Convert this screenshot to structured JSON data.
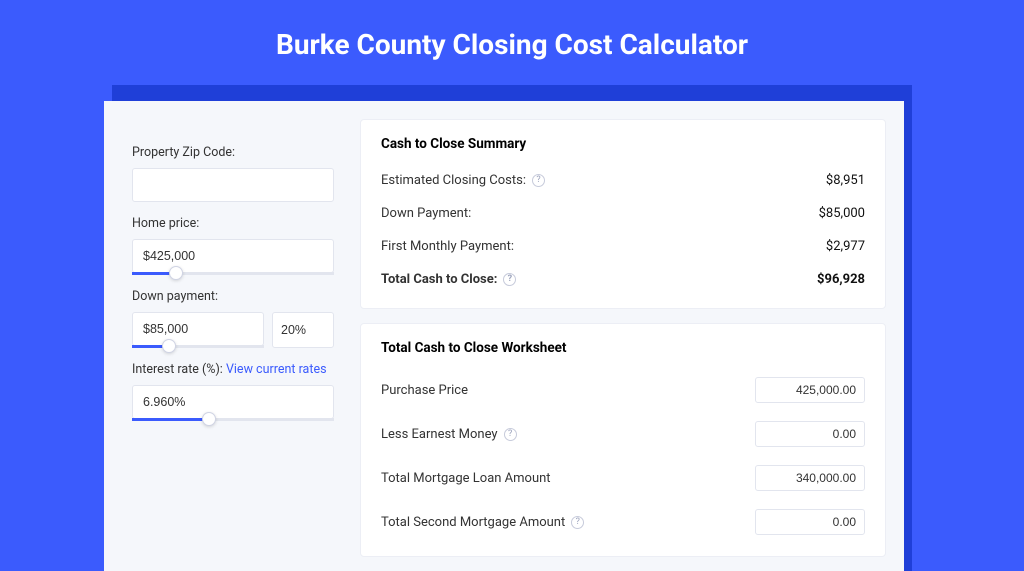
{
  "colors": {
    "page_bg": "#3b5bfd",
    "card_bg": "#f5f7fb",
    "panel_bg": "#ffffff",
    "border": "#e2e5ee",
    "link": "#3b5bfd",
    "shadow": "#1f3fd8"
  },
  "title": "Burke County Closing Cost Calculator",
  "form": {
    "zip_label": "Property Zip Code:",
    "zip_value": "",
    "home_price_label": "Home price:",
    "home_price_value": "$425,000",
    "home_price_slider_pct": 22,
    "down_payment_label": "Down payment:",
    "down_payment_value": "$85,000",
    "down_payment_pct": "20%",
    "down_payment_slider_pct": 28,
    "interest_label_prefix": "Interest rate (%): ",
    "interest_link": "View current rates",
    "interest_value": "6.960%",
    "interest_slider_pct": 38
  },
  "summary": {
    "title": "Cash to Close Summary",
    "rows": [
      {
        "label": "Estimated Closing Costs:",
        "help": true,
        "value": "$8,951"
      },
      {
        "label": "Down Payment:",
        "help": false,
        "value": "$85,000"
      },
      {
        "label": "First Monthly Payment:",
        "help": false,
        "value": "$2,977"
      }
    ],
    "total": {
      "label": "Total Cash to Close:",
      "help": true,
      "value": "$96,928"
    }
  },
  "worksheet": {
    "title": "Total Cash to Close Worksheet",
    "rows": [
      {
        "label": "Purchase Price",
        "help": false,
        "value": "425,000.00"
      },
      {
        "label": "Less Earnest Money",
        "help": true,
        "value": "0.00"
      },
      {
        "label": "Total Mortgage Loan Amount",
        "help": false,
        "value": "340,000.00"
      },
      {
        "label": "Total Second Mortgage Amount",
        "help": true,
        "value": "0.00"
      }
    ]
  }
}
